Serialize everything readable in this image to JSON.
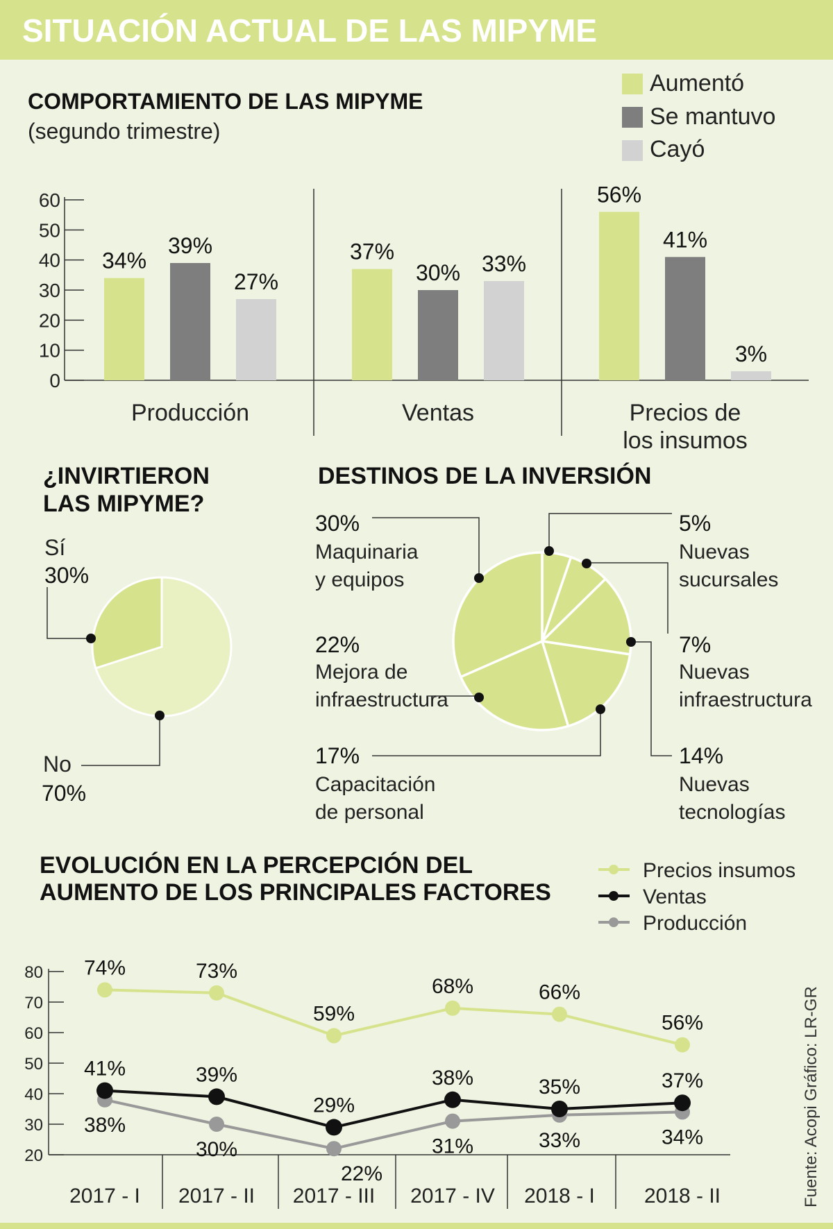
{
  "header": {
    "title": "SITUACIÓN ACTUAL DE LAS MIPYME"
  },
  "colors": {
    "green": "#d6e38c",
    "green_light": "#e9f0c2",
    "dark_gray": "#7e7e7e",
    "light_gray": "#d2d2d2",
    "black": "#111111",
    "line_gray": "#999999",
    "background": "#eff3e1",
    "header_bg": "#d6e38c"
  },
  "behaviour": {
    "title": "COMPORTAMIENTO DE LAS MIPYME",
    "subtitle": "(segundo trimestre)",
    "legend": [
      "Aumentó",
      "Se mantuvo",
      "Cayó"
    ]
  },
  "investment": {
    "title_line1": "¿INVIRTIERON",
    "title_line2": "LAS MIPYME?",
    "si_label": "Sí",
    "si_value": "30%",
    "no_label": "No",
    "no_value": "70%"
  },
  "destinations": {
    "title": "DESTINOS DE LA INVERSIÓN",
    "items": [
      {
        "pct": "30%",
        "line1": "Maquinaria",
        "line2": "y equipos"
      },
      {
        "pct": "22%",
        "line1": "Mejora de",
        "line2": "infraestructura"
      },
      {
        "pct": "17%",
        "line1": "Capacitación",
        "line2": "de personal"
      },
      {
        "pct": "5%",
        "line1": "Nuevas",
        "line2": "sucursales"
      },
      {
        "pct": "7%",
        "line1": "Nuevas",
        "line2": "infraestructura"
      },
      {
        "pct": "14%",
        "line1": "Nuevas",
        "line2": "tecnologías"
      }
    ]
  },
  "evolution": {
    "title_line1": "EVOLUCIÓN EN LA PERCEPCIÓN DEL",
    "title_line2": "AUMENTO DE LOS PRINCIPALES FACTORES",
    "legend": [
      "Precios insumos",
      "Ventas",
      "Producción"
    ]
  },
  "source": {
    "text": "Fuente: Acopi   Gráfico: LR-GR"
  },
  "chart_data": [
    {
      "type": "bar",
      "title": "COMPORTAMIENTO DE LAS MIPYME",
      "subtitle": "(segundo trimestre)",
      "categories": [
        "Producción",
        "Ventas",
        "Precios de los insumos"
      ],
      "category_lines": [
        [
          "Producción"
        ],
        [
          "Ventas"
        ],
        [
          "Precios de",
          "los insumos"
        ]
      ],
      "series": [
        {
          "name": "Aumentó",
          "values": [
            34,
            37,
            56
          ]
        },
        {
          "name": "Se mantuvo",
          "values": [
            39,
            30,
            41
          ]
        },
        {
          "name": "Cayó",
          "values": [
            27,
            33,
            3
          ]
        }
      ],
      "ylim": [
        0,
        60
      ],
      "yticks": [
        0,
        10,
        20,
        30,
        40,
        50,
        60
      ],
      "legend": "top-right"
    },
    {
      "type": "pie",
      "title": "¿INVIRTIERON LAS MIPYME?",
      "labels": [
        "Sí",
        "No"
      ],
      "values": [
        30,
        70
      ]
    },
    {
      "type": "pie",
      "title": "DESTINOS DE LA INVERSIÓN",
      "labels": [
        "Nuevas sucursales",
        "Nuevas infraestructura",
        "Nuevas tecnologías",
        "Capacitación de personal",
        "Mejora de infraestructura",
        "Maquinaria y equipos"
      ],
      "values": [
        5,
        7,
        14,
        17,
        22,
        30
      ]
    },
    {
      "type": "line",
      "title": "EVOLUCIÓN EN LA PERCEPCIÓN DEL AUMENTO DE LOS PRINCIPALES FACTORES",
      "x": [
        "2017 - I",
        "2017 - II",
        "2017 - III",
        "2017 - IV",
        "2018 - I",
        "2018 - II"
      ],
      "series": [
        {
          "name": "Precios insumos",
          "values": [
            74,
            73,
            59,
            68,
            66,
            56
          ]
        },
        {
          "name": "Ventas",
          "values": [
            41,
            39,
            29,
            38,
            35,
            37
          ]
        },
        {
          "name": "Producción",
          "values": [
            38,
            30,
            22,
            31,
            33,
            34
          ]
        }
      ],
      "ylim": [
        20,
        80
      ],
      "yticks": [
        20,
        30,
        40,
        50,
        60,
        70,
        80
      ],
      "legend": "top-right"
    }
  ]
}
